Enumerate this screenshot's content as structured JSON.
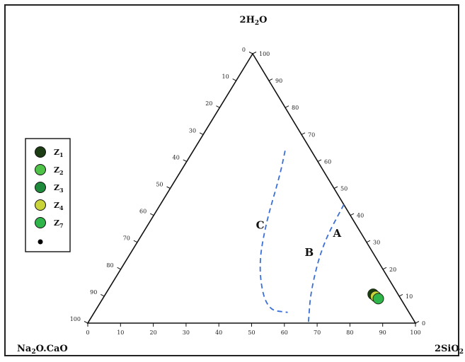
{
  "chart_data": {
    "type": "ternary",
    "vertices": {
      "top": {
        "name": "2H",
        "sub": "2",
        "rest": "O"
      },
      "left": {
        "pre": "Na",
        "sub": "2",
        "rest": "O.CaO"
      },
      "right": {
        "name": "2SiO",
        "sub": "2"
      }
    },
    "ticks": [
      0,
      10,
      20,
      30,
      40,
      50,
      60,
      70,
      80,
      90,
      100
    ],
    "regions": [
      {
        "label": "A",
        "a": 60,
        "b": 8,
        "c": 32
      },
      {
        "label": "B",
        "a": 55,
        "b": 20,
        "c": 25
      },
      {
        "label": "C",
        "a": 35,
        "b": 30,
        "c": 35
      }
    ],
    "boundaries": [
      [
        [
          28,
          8,
          64
        ],
        [
          31,
          14,
          55
        ],
        [
          36,
          28,
          36
        ],
        [
          42,
          38,
          20
        ],
        [
          52,
          43,
          5
        ],
        [
          59,
          37,
          4
        ]
      ],
      [
        [
          56,
          0,
          44
        ],
        [
          57,
          14,
          29
        ],
        [
          62,
          26,
          12
        ],
        [
          68,
          33,
          0
        ]
      ]
    ],
    "legend": [
      {
        "label": "Z",
        "sub": "1",
        "color": "#1c3d14"
      },
      {
        "label": "Z",
        "sub": "2",
        "color": "#4fc248"
      },
      {
        "label": "Z",
        "sub": "3",
        "color": "#1f8a3b"
      },
      {
        "label": "Z",
        "sub": "4",
        "color": "#c9d43a"
      },
      {
        "label": "Z",
        "sub": "7",
        "color": "#2fb54a"
      },
      {
        "label": "",
        "sub": "",
        "color": "#000000",
        "small": true
      }
    ],
    "points": [
      {
        "series": "Z1",
        "siO2": 91.5,
        "h2o": 12,
        "color": "#1c3d14"
      },
      {
        "series": "Z4",
        "siO2": 92.0,
        "h2o": 11,
        "color": "#c9d43a"
      },
      {
        "series": "Z7",
        "siO2": 92.5,
        "h2o": 10,
        "color": "#2fb54a"
      }
    ]
  }
}
